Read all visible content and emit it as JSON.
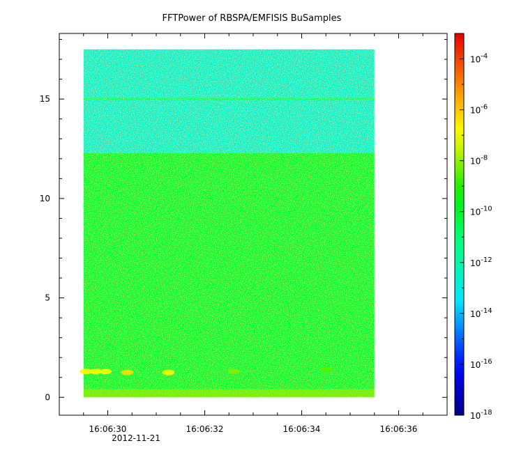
{
  "chart_data": {
    "type": "heatmap",
    "title": "FFTPower of RBSPA/EMFISIS  BuSamples",
    "xlabel": "",
    "ylabel": "",
    "x_tick_labels": [
      "16:06:30",
      "16:06:32",
      "16:06:34",
      "16:06:36"
    ],
    "x_date_label": "2012-11-21",
    "x_range": [
      "16:06:29.0",
      "16:06:37.0"
    ],
    "y_range": [
      -0.9,
      18.3
    ],
    "y_ticks": [
      0,
      5,
      10,
      15
    ],
    "data_extent": {
      "x_start": "16:06:29.5",
      "x_end": "16:06:35.5",
      "y_min": 0,
      "y_max": 17.5
    },
    "colorbar": {
      "scale": "log",
      "range": [
        1e-18,
        0.001
      ],
      "colormap": "rainbow",
      "tick_labels": [
        {
          "base": "10",
          "exp": "-4"
        },
        {
          "base": "10",
          "exp": "-6"
        },
        {
          "base": "10",
          "exp": "-8"
        },
        {
          "base": "10",
          "exp": "-10"
        },
        {
          "base": "10",
          "exp": "-12"
        },
        {
          "base": "10",
          "exp": "-14"
        },
        {
          "base": "10",
          "exp": "-16"
        },
        {
          "base": "10",
          "exp": "-18"
        }
      ],
      "tick_values": [
        -4,
        -6,
        -8,
        -10,
        -12,
        -14,
        -16,
        -18
      ]
    },
    "bands": [
      {
        "y_from": 0.0,
        "y_to": 0.4,
        "log_power": -8.3
      },
      {
        "y_from": 0.4,
        "y_to": 12.3,
        "log_power": -10.2
      },
      {
        "y_from": 12.3,
        "y_to": 17.5,
        "log_power": -12.6
      }
    ],
    "line_feature": {
      "y": 15.0,
      "log_power": -10.8
    },
    "hotspots": [
      {
        "x": "16:06:29.55",
        "y": 1.3,
        "log_power": -6.8
      },
      {
        "x": "16:06:29.75",
        "y": 1.3,
        "log_power": -7.0
      },
      {
        "x": "16:06:29.95",
        "y": 1.3,
        "log_power": -7.0
      },
      {
        "x": "16:06:30.40",
        "y": 1.25,
        "log_power": -6.3
      },
      {
        "x": "16:06:31.25",
        "y": 1.25,
        "log_power": -6.8
      },
      {
        "x": "16:06:32.60",
        "y": 1.3,
        "log_power": -8.2
      },
      {
        "x": "16:06:34.50",
        "y": 1.4,
        "log_power": -8.5
      }
    ]
  },
  "colors": {
    "background": "#ffffff",
    "axis": "#000000"
  }
}
